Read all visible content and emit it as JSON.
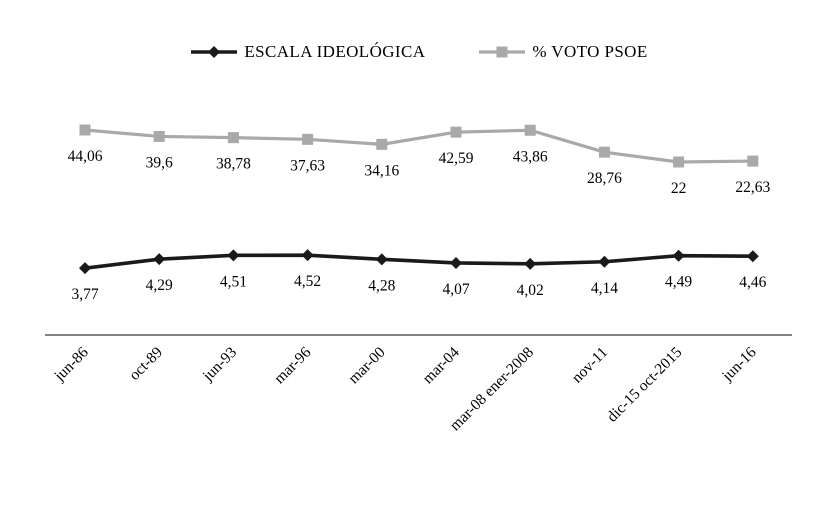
{
  "chart_data": {
    "type": "line",
    "title": "",
    "xlabel": "",
    "ylabel": "",
    "grid": false,
    "y_axis_visible": false,
    "legend_position": "top",
    "data_labels": true,
    "categories": [
      "jun-86",
      "oct-89",
      "jun-93",
      "mar-96",
      "mar-00",
      "mar-04",
      "mar-08 ener-2008",
      "nov-11",
      "dic-15 oct-2015",
      "jun-16"
    ],
    "series": [
      {
        "name": "ESCALA IDEOLÓGICA",
        "marker": "diamond",
        "color": "#1a1a1a",
        "values": [
          3.77,
          4.29,
          4.51,
          4.52,
          4.28,
          4.07,
          4.02,
          4.14,
          4.49,
          4.46
        ],
        "labels": [
          "3,77",
          "4,29",
          "4,51",
          "4,52",
          "4,28",
          "4,07",
          "4,02",
          "4,14",
          "4,49",
          "4,46"
        ]
      },
      {
        "name": "% VOTO PSOE",
        "marker": "square",
        "color": "#a9a9a9",
        "values": [
          44.06,
          39.6,
          38.78,
          37.63,
          34.16,
          42.59,
          43.86,
          28.76,
          22,
          22.63
        ],
        "labels": [
          "44,06",
          "39,6",
          "38,78",
          "37,63",
          "34,16",
          "42,59",
          "43,86",
          "28,76",
          "22",
          "22,63"
        ]
      }
    ],
    "axis_color": "#595959",
    "text_color": "#000000"
  }
}
